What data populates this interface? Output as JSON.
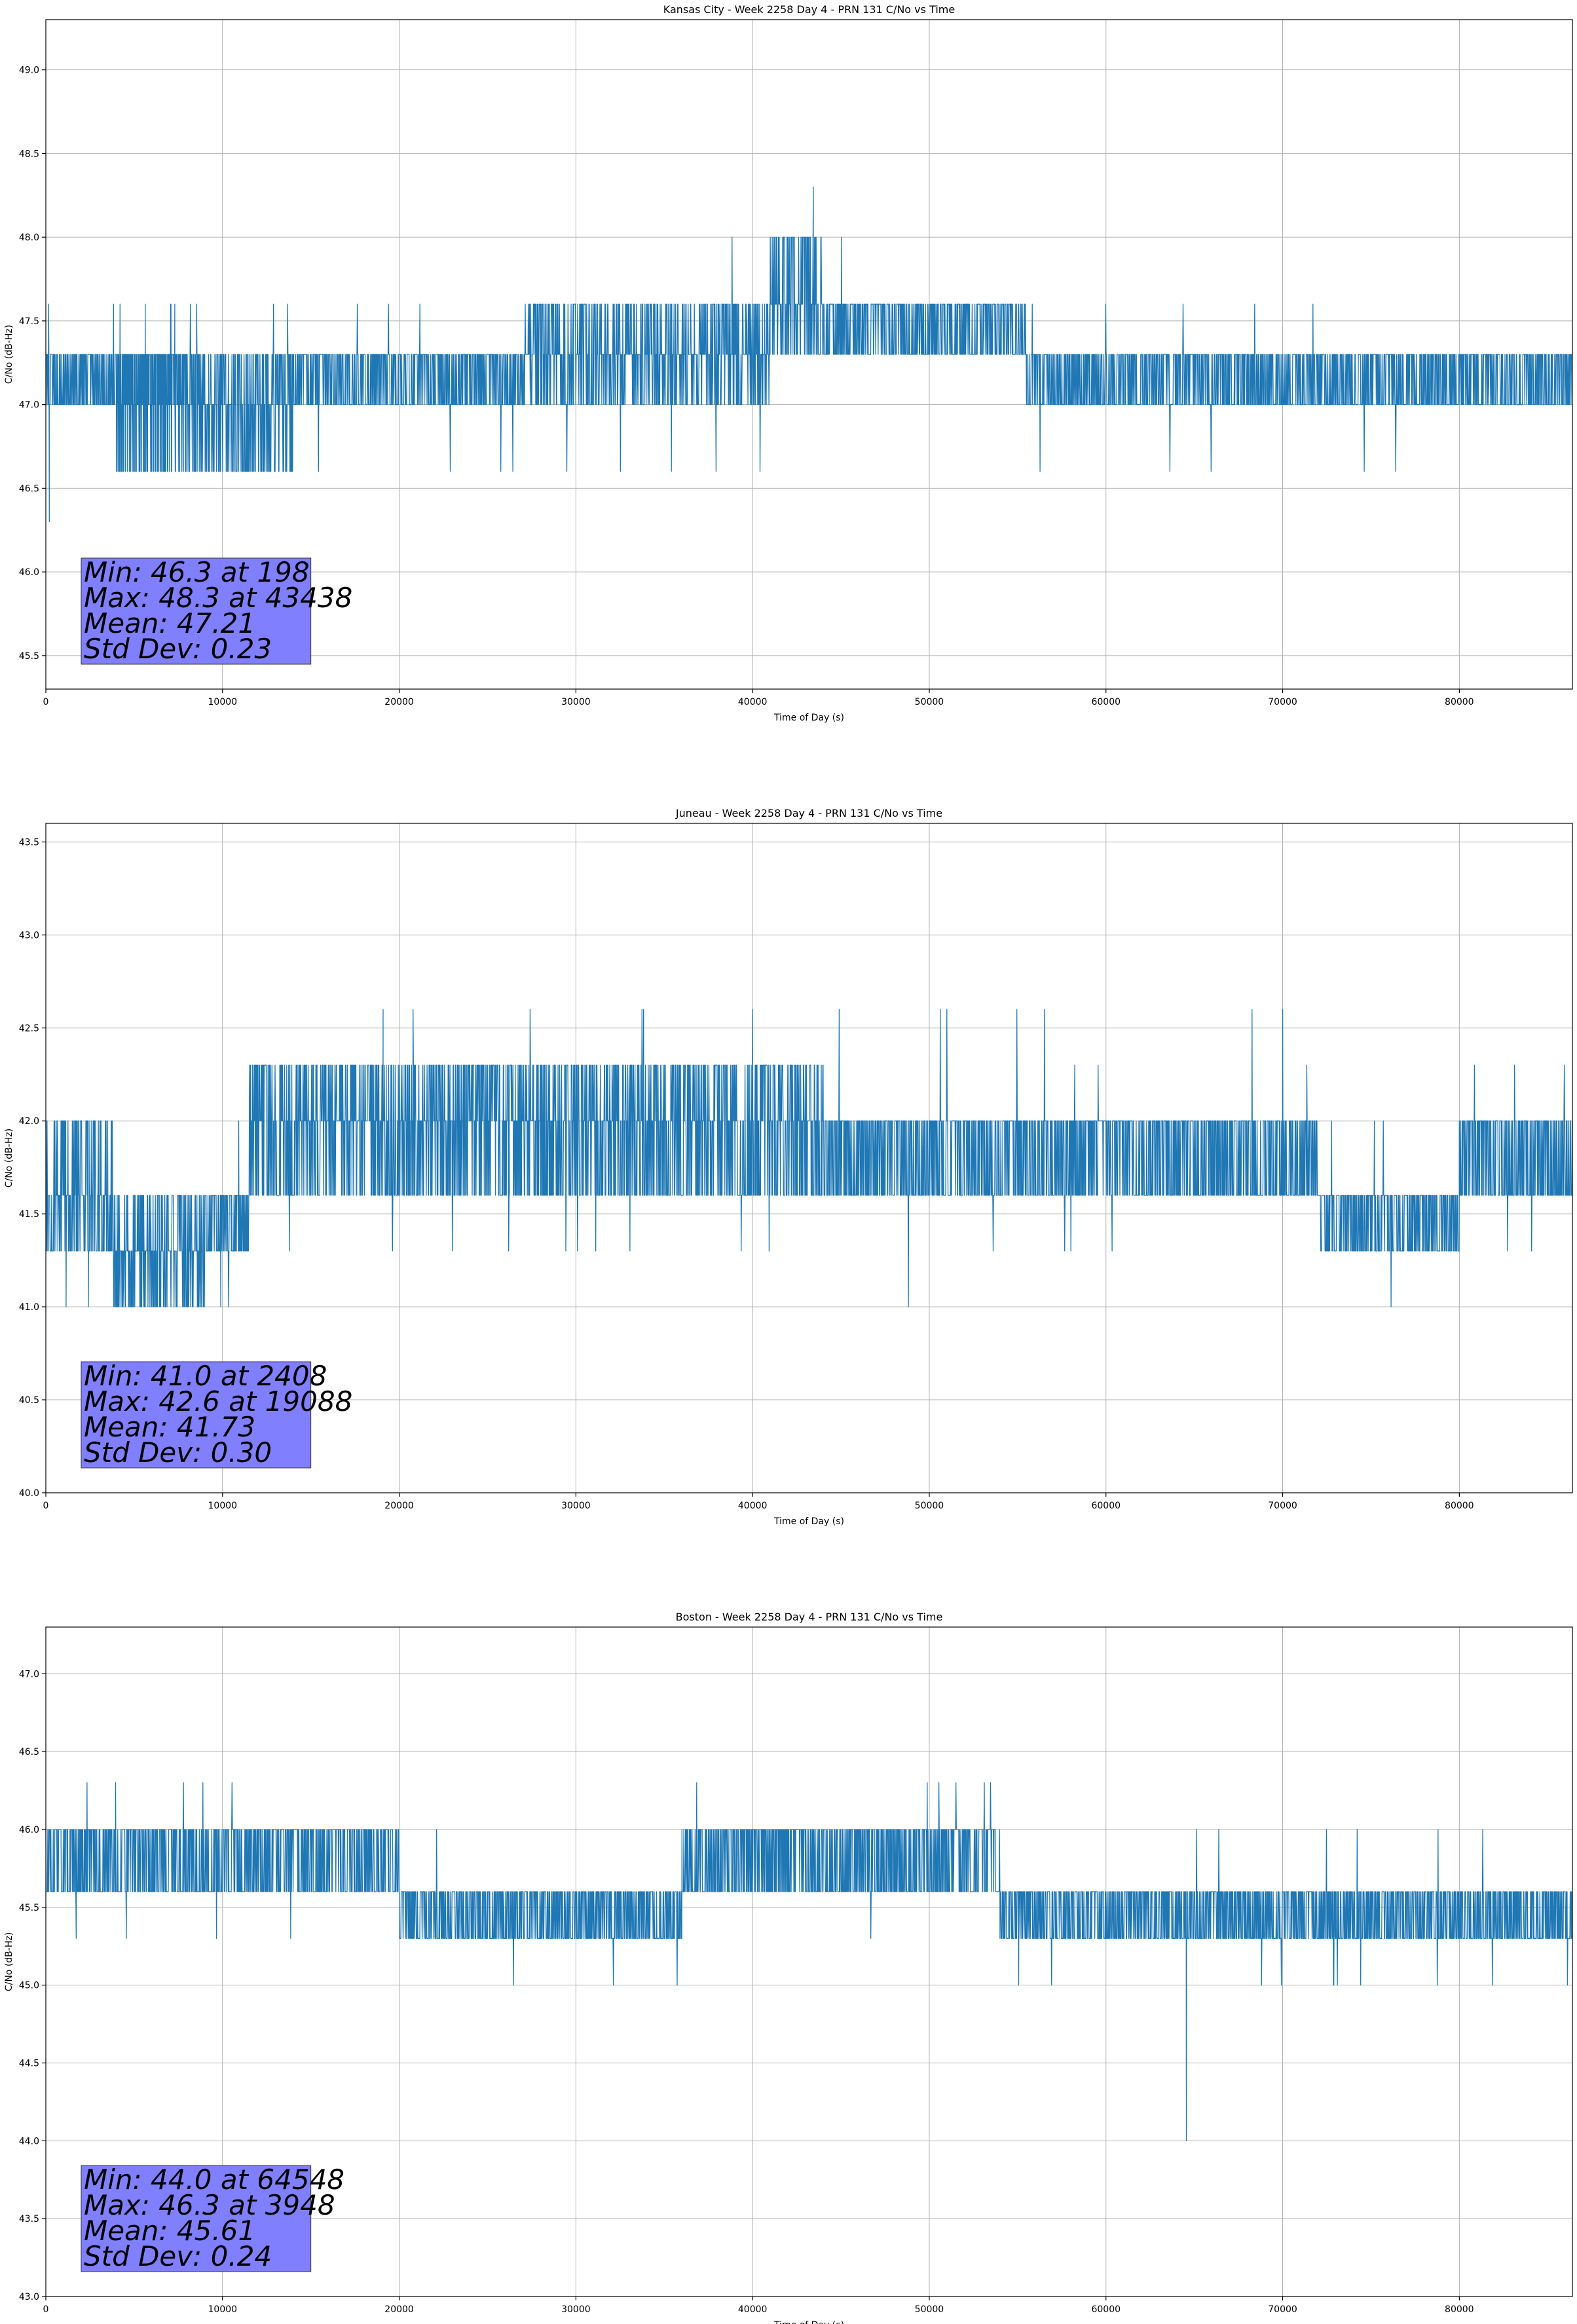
{
  "chart_data": [
    {
      "type": "line",
      "title": "Kansas City - Week 2258 Day 4 - PRN 131 C/No vs Time",
      "xlabel": "Time of Day (s)",
      "ylabel": "C/No (dB-Hz)",
      "xlim": [
        0,
        86400
      ],
      "ylim": [
        45.3,
        49.3
      ],
      "xticks": [
        0,
        10000,
        20000,
        30000,
        40000,
        50000,
        60000,
        70000,
        80000
      ],
      "yticks": [
        45.5,
        46.0,
        46.5,
        47.0,
        47.5,
        48.0,
        48.5,
        49.0
      ],
      "grid": true,
      "series": [
        {
          "color": "#1f77b4",
          "segments": [
            {
              "x": [
                0,
                8000
              ],
              "levels": [
                47.0,
                47.3
              ],
              "spikes": [
                47.6
              ]
            },
            {
              "x": [
                4000,
                14000
              ],
              "levels": [
                46.6,
                47.0,
                47.3
              ],
              "spikes": [
                47.6
              ]
            },
            {
              "x": [
                14000,
                27000
              ],
              "levels": [
                47.0,
                47.3
              ],
              "spikes": [
                47.6,
                46.6
              ]
            },
            {
              "x": [
                27000,
                41000
              ],
              "levels": [
                47.0,
                47.3,
                47.6
              ],
              "spikes": [
                48.0,
                46.6
              ]
            },
            {
              "x": [
                41000,
                44000
              ],
              "levels": [
                47.3,
                47.6,
                48.0
              ],
              "spikes": [
                48.3
              ]
            },
            {
              "x": [
                44000,
                55500
              ],
              "levels": [
                47.3,
                47.6
              ],
              "spikes": [
                48.0,
                47.0
              ]
            },
            {
              "x": [
                55500,
                86400
              ],
              "levels": [
                47.0,
                47.3
              ],
              "spikes": [
                47.6,
                46.6
              ]
            }
          ],
          "min_point": [
            198,
            46.3
          ],
          "max_point": [
            43438,
            48.3
          ]
        }
      ],
      "stats": [
        "Min: 46.3 at 198",
        "Max: 48.3 at 43438",
        "Mean: 47.21",
        "Std Dev: 0.23"
      ],
      "stats_box_color": "#8080ff"
    },
    {
      "type": "line",
      "title": "Juneau - Week 2258 Day 4 - PRN 131 C/No vs Time",
      "xlabel": "Time of Day (s)",
      "ylabel": "C/No (dB-Hz)",
      "xlim": [
        0,
        86400
      ],
      "ylim": [
        40.0,
        43.6
      ],
      "xticks": [
        0,
        10000,
        20000,
        30000,
        40000,
        50000,
        60000,
        70000,
        80000
      ],
      "yticks": [
        40.0,
        40.5,
        41.0,
        41.5,
        42.0,
        42.5,
        43.0,
        43.5
      ],
      "grid": true,
      "series": [
        {
          "color": "#1f77b4",
          "segments": [
            {
              "x": [
                0,
                3800
              ],
              "levels": [
                41.3,
                41.6,
                42.0
              ],
              "spikes": [
                41.0
              ]
            },
            {
              "x": [
                3800,
                9000
              ],
              "levels": [
                41.0,
                41.3,
                41.6
              ],
              "spikes": [
                41.6
              ]
            },
            {
              "x": [
                9000,
                11500
              ],
              "levels": [
                41.3,
                41.6
              ],
              "spikes": [
                42.0,
                41.0
              ]
            },
            {
              "x": [
                11500,
                44000
              ],
              "levels": [
                41.6,
                42.0,
                42.3
              ],
              "spikes": [
                42.6,
                41.3
              ]
            },
            {
              "x": [
                44000,
                72000
              ],
              "levels": [
                41.6,
                42.0
              ],
              "spikes": [
                42.3,
                42.6,
                41.3,
                41.0
              ]
            },
            {
              "x": [
                72000,
                80000
              ],
              "levels": [
                41.3,
                41.6
              ],
              "spikes": [
                42.0,
                41.0
              ]
            },
            {
              "x": [
                80000,
                86400
              ],
              "levels": [
                41.6,
                42.0
              ],
              "spikes": [
                42.3,
                41.3
              ]
            }
          ],
          "min_point": [
            2408,
            41.0
          ],
          "max_point": [
            19088,
            42.6
          ]
        }
      ],
      "stats": [
        "Min: 41.0 at 2408",
        "Max: 42.6 at 19088",
        "Mean: 41.73",
        "Std Dev: 0.30"
      ],
      "stats_box_color": "#8080ff"
    },
    {
      "type": "line",
      "title": "Boston - Week 2258 Day 4 - PRN 131 C/No vs Time",
      "xlabel": "Time of Day (s)",
      "ylabel": "C/No (dB-Hz)",
      "xlim": [
        0,
        86400
      ],
      "ylim": [
        43.0,
        47.3
      ],
      "xticks": [
        0,
        10000,
        20000,
        30000,
        40000,
        50000,
        60000,
        70000,
        80000
      ],
      "yticks": [
        43.0,
        43.5,
        44.0,
        44.5,
        45.0,
        45.5,
        46.0,
        46.5,
        47.0
      ],
      "grid": true,
      "series": [
        {
          "color": "#1f77b4",
          "segments": [
            {
              "x": [
                0,
                20000
              ],
              "levels": [
                45.6,
                46.0
              ],
              "spikes": [
                46.3,
                45.3
              ]
            },
            {
              "x": [
                20000,
                36000
              ],
              "levels": [
                45.3,
                45.6
              ],
              "spikes": [
                46.0,
                45.0
              ]
            },
            {
              "x": [
                36000,
                54000
              ],
              "levels": [
                45.6,
                46.0
              ],
              "spikes": [
                46.3,
                45.3
              ]
            },
            {
              "x": [
                54000,
                86400
              ],
              "levels": [
                45.3,
                45.6
              ],
              "spikes": [
                46.0,
                45.0
              ]
            }
          ],
          "min_point": [
            64548,
            44.0
          ],
          "max_point": [
            3948,
            46.3
          ]
        }
      ],
      "stats": [
        "Min: 44.0 at 64548",
        "Max: 46.3 at 3948",
        "Mean: 45.61",
        "Std Dev: 0.24"
      ],
      "stats_box_color": "#8080ff"
    }
  ]
}
